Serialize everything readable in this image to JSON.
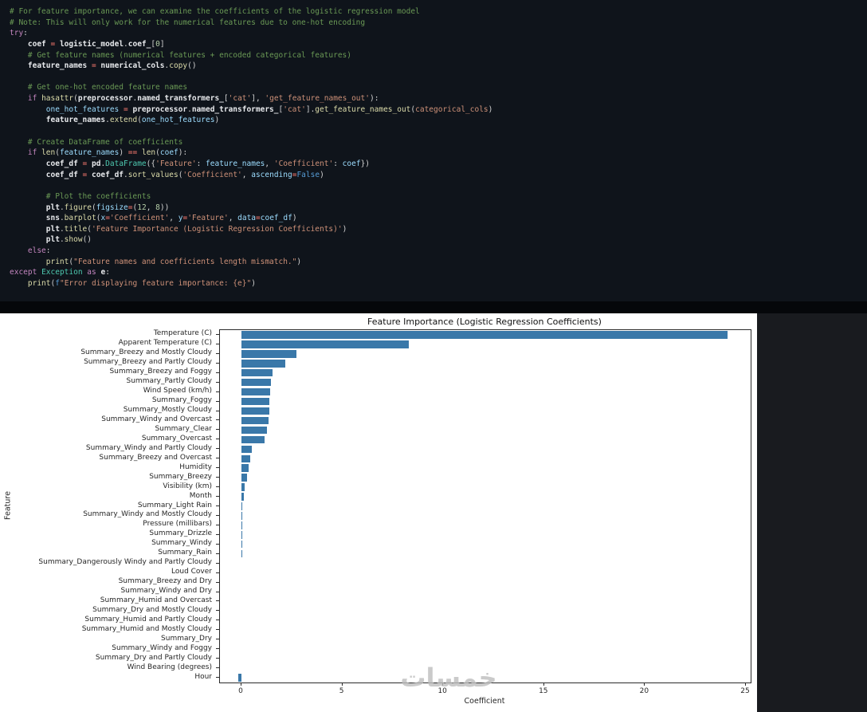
{
  "code_cell": {
    "token_colors": {
      "c": "#6A9955",
      "k": "#C586C0",
      "v": "#E8EAED",
      "b": "#9CDCFE",
      "f": "#DCDCAA",
      "s": "#CE9178",
      "n": "#B5CEA8",
      "o": "#FF7B72",
      "p": "#D4D4D4",
      "cl": "#4EC9B0",
      "kc": "#569CD6"
    },
    "lines": [
      [
        [
          "c",
          "# For feature importance, we can examine the coefficients of the logistic regression model"
        ]
      ],
      [
        [
          "c",
          "# Note: This will only work for the numerical features due to one-hot encoding"
        ]
      ],
      [
        [
          "k",
          "try"
        ],
        [
          "p",
          ":"
        ]
      ],
      [
        [
          "p",
          "    "
        ],
        [
          "v",
          "coef"
        ],
        [
          "o",
          " = "
        ],
        [
          "v",
          "logistic_model"
        ],
        [
          "p",
          "."
        ],
        [
          "v",
          "coef_"
        ],
        [
          "p",
          "["
        ],
        [
          "n",
          "0"
        ],
        [
          "p",
          "]"
        ]
      ],
      [
        [
          "p",
          "    "
        ],
        [
          "c",
          "# Get feature names (numerical features + encoded categorical features)"
        ]
      ],
      [
        [
          "p",
          "    "
        ],
        [
          "v",
          "feature_names"
        ],
        [
          "o",
          " = "
        ],
        [
          "v",
          "numerical_cols"
        ],
        [
          "p",
          "."
        ],
        [
          "f",
          "copy"
        ],
        [
          "p",
          "()"
        ]
      ],
      [],
      [
        [
          "p",
          "    "
        ],
        [
          "c",
          "# Get one-hot encoded feature names"
        ]
      ],
      [
        [
          "p",
          "    "
        ],
        [
          "k",
          "if"
        ],
        [
          "p",
          " "
        ],
        [
          "f",
          "hasattr"
        ],
        [
          "p",
          "("
        ],
        [
          "v",
          "preprocessor"
        ],
        [
          "p",
          "."
        ],
        [
          "v",
          "named_transformers_"
        ],
        [
          "p",
          "["
        ],
        [
          "s",
          "'cat'"
        ],
        [
          "p",
          "], "
        ],
        [
          "s",
          "'get_feature_names_out'"
        ],
        [
          "p",
          "):"
        ]
      ],
      [
        [
          "p",
          "        "
        ],
        [
          "b",
          "one_hot_features"
        ],
        [
          "o",
          " = "
        ],
        [
          "v",
          "preprocessor"
        ],
        [
          "p",
          "."
        ],
        [
          "v",
          "named_transformers_"
        ],
        [
          "p",
          "["
        ],
        [
          "s",
          "'cat'"
        ],
        [
          "p",
          "]."
        ],
        [
          "f",
          "get_feature_names_out"
        ],
        [
          "p",
          "("
        ],
        [
          "s",
          "categorical_cols"
        ],
        [
          "p",
          ")"
        ]
      ],
      [
        [
          "p",
          "        "
        ],
        [
          "v",
          "feature_names"
        ],
        [
          "p",
          "."
        ],
        [
          "f",
          "extend"
        ],
        [
          "p",
          "("
        ],
        [
          "b",
          "one_hot_features"
        ],
        [
          "p",
          ")"
        ]
      ],
      [],
      [
        [
          "p",
          "    "
        ],
        [
          "c",
          "# Create DataFrame of coefficients"
        ]
      ],
      [
        [
          "p",
          "    "
        ],
        [
          "k",
          "if"
        ],
        [
          "p",
          " "
        ],
        [
          "f",
          "len"
        ],
        [
          "p",
          "("
        ],
        [
          "b",
          "feature_names"
        ],
        [
          "p",
          ")"
        ],
        [
          "o",
          " == "
        ],
        [
          "f",
          "len"
        ],
        [
          "p",
          "("
        ],
        [
          "b",
          "coef"
        ],
        [
          "p",
          "):"
        ]
      ],
      [
        [
          "p",
          "        "
        ],
        [
          "v",
          "coef_df"
        ],
        [
          "o",
          " = "
        ],
        [
          "v",
          "pd"
        ],
        [
          "p",
          "."
        ],
        [
          "cl",
          "DataFrame"
        ],
        [
          "p",
          "({"
        ],
        [
          "s",
          "'Feature'"
        ],
        [
          "p",
          ": "
        ],
        [
          "b",
          "feature_names"
        ],
        [
          "p",
          ", "
        ],
        [
          "s",
          "'Coefficient'"
        ],
        [
          "p",
          ": "
        ],
        [
          "b",
          "coef"
        ],
        [
          "p",
          "})"
        ]
      ],
      [
        [
          "p",
          "        "
        ],
        [
          "v",
          "coef_df"
        ],
        [
          "o",
          " = "
        ],
        [
          "v",
          "coef_df"
        ],
        [
          "p",
          "."
        ],
        [
          "f",
          "sort_values"
        ],
        [
          "p",
          "("
        ],
        [
          "s",
          "'Coefficient'"
        ],
        [
          "p",
          ", "
        ],
        [
          "b",
          "ascending"
        ],
        [
          "o",
          "="
        ],
        [
          "kc",
          "False"
        ],
        [
          "p",
          ")"
        ]
      ],
      [],
      [
        [
          "p",
          "        "
        ],
        [
          "c",
          "# Plot the coefficients"
        ]
      ],
      [
        [
          "p",
          "        "
        ],
        [
          "v",
          "plt"
        ],
        [
          "p",
          "."
        ],
        [
          "f",
          "figure"
        ],
        [
          "p",
          "("
        ],
        [
          "b",
          "figsize"
        ],
        [
          "o",
          "="
        ],
        [
          "p",
          "("
        ],
        [
          "n",
          "12"
        ],
        [
          "p",
          ", "
        ],
        [
          "n",
          "8"
        ],
        [
          "p",
          "))"
        ]
      ],
      [
        [
          "p",
          "        "
        ],
        [
          "v",
          "sns"
        ],
        [
          "p",
          "."
        ],
        [
          "f",
          "barplot"
        ],
        [
          "p",
          "("
        ],
        [
          "b",
          "x"
        ],
        [
          "o",
          "="
        ],
        [
          "s",
          "'Coefficient'"
        ],
        [
          "p",
          ", "
        ],
        [
          "b",
          "y"
        ],
        [
          "o",
          "="
        ],
        [
          "s",
          "'Feature'"
        ],
        [
          "p",
          ", "
        ],
        [
          "b",
          "data"
        ],
        [
          "o",
          "="
        ],
        [
          "b",
          "coef_df"
        ],
        [
          "p",
          ")"
        ]
      ],
      [
        [
          "p",
          "        "
        ],
        [
          "v",
          "plt"
        ],
        [
          "p",
          "."
        ],
        [
          "f",
          "title"
        ],
        [
          "p",
          "("
        ],
        [
          "s",
          "'Feature Importance (Logistic Regression Coefficients)'"
        ],
        [
          "p",
          ")"
        ]
      ],
      [
        [
          "p",
          "        "
        ],
        [
          "v",
          "plt"
        ],
        [
          "p",
          "."
        ],
        [
          "f",
          "show"
        ],
        [
          "p",
          "()"
        ]
      ],
      [
        [
          "p",
          "    "
        ],
        [
          "k",
          "else"
        ],
        [
          "p",
          ":"
        ]
      ],
      [
        [
          "p",
          "        "
        ],
        [
          "f",
          "print"
        ],
        [
          "p",
          "("
        ],
        [
          "s",
          "\"Feature names and coefficients length mismatch.\""
        ],
        [
          "p",
          ")"
        ]
      ],
      [
        [
          "k",
          "except"
        ],
        [
          "p",
          " "
        ],
        [
          "cl",
          "Exception"
        ],
        [
          "p",
          " "
        ],
        [
          "k",
          "as"
        ],
        [
          "p",
          " "
        ],
        [
          "v",
          "e"
        ],
        [
          "p",
          ":"
        ]
      ],
      [
        [
          "p",
          "    "
        ],
        [
          "f",
          "print"
        ],
        [
          "p",
          "("
        ],
        [
          "kc",
          "f"
        ],
        [
          "s",
          "\"Error displaying feature importance: {e}\""
        ],
        [
          "p",
          ")"
        ]
      ]
    ]
  },
  "chart_data": {
    "type": "bar",
    "orientation": "horizontal",
    "title": "Feature Importance (Logistic Regression Coefficients)",
    "xlabel": "Coefficient",
    "ylabel": "Feature",
    "xticks": [
      0,
      5,
      10,
      15,
      20,
      25
    ],
    "xlim": [
      -1.07,
      25.2
    ],
    "grid": false,
    "legend": false,
    "bar_color": "#3a78a9",
    "background": "#ffffff",
    "categories": [
      "Temperature (C)",
      "Apparent Temperature (C)",
      "Summary_Breezy and Mostly Cloudy",
      "Summary_Breezy and Partly Cloudy",
      "Summary_Breezy and Foggy",
      "Summary_Partly Cloudy",
      "Wind Speed (km/h)",
      "Summary_Foggy",
      "Summary_Mostly Cloudy",
      "Summary_Windy and Overcast",
      "Summary_Clear",
      "Summary_Overcast",
      "Summary_Windy and Partly Cloudy",
      "Summary_Breezy and Overcast",
      "Humidity",
      "Summary_Breezy",
      "Visibility (km)",
      "Month",
      "Summary_Light Rain",
      "Summary_Windy and Mostly Cloudy",
      "Pressure (millibars)",
      "Summary_Drizzle",
      "Summary_Windy",
      "Summary_Rain",
      "Summary_Dangerously Windy and Partly Cloudy",
      "Loud Cover",
      "Summary_Breezy and Dry",
      "Summary_Windy and Dry",
      "Summary_Humid and Overcast",
      "Summary_Dry and Mostly Cloudy",
      "Summary_Humid and Partly Cloudy",
      "Summary_Humid and Mostly Cloudy",
      "Summary_Dry",
      "Summary_Windy and Foggy",
      "Summary_Dry and Partly Cloudy",
      "Wind Bearing (degrees)",
      "Hour"
    ],
    "values": [
      24.1,
      8.3,
      2.72,
      2.18,
      1.55,
      1.45,
      1.42,
      1.4,
      1.37,
      1.33,
      1.26,
      1.15,
      0.51,
      0.43,
      0.36,
      0.28,
      0.16,
      0.1,
      0.05,
      0.04,
      0.035,
      0.03,
      0.028,
      0.025,
      0.01,
      0.005,
      0.003,
      0.002,
      0.001,
      0.001,
      0.0005,
      0.0,
      -0.001,
      -0.003,
      -0.008,
      -0.015,
      -0.15
    ]
  },
  "watermark": {
    "text": "خمسات"
  }
}
